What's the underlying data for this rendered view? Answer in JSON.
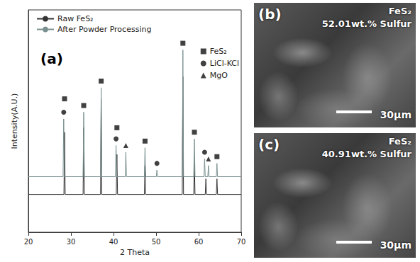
{
  "chart_data": {
    "type": "line",
    "panel_label": "(a)",
    "x_label": "2 Theta",
    "y_label": "Intensity(A.U.)",
    "xlim": [
      20,
      70
    ],
    "xticks": [
      20,
      30,
      40,
      50,
      60,
      70
    ],
    "ylim": [
      0,
      100
    ],
    "tick_labels": "x",
    "grid": false,
    "legend": "upper left",
    "series": [
      {
        "name": "Raw FeS₂",
        "type": "line",
        "color": "#333333",
        "x": [
          20,
          28.35,
          28.5,
          28.65,
          32.85,
          33.0,
          33.15,
          36.95,
          37.1,
          37.25,
          40.65,
          40.8,
          40.95,
          47.25,
          47.4,
          47.55,
          56.15,
          56.3,
          56.45,
          58.85,
          59.0,
          59.15,
          61.55,
          61.7,
          61.85,
          64.15,
          64.3,
          64.45,
          70
        ],
        "values": [
          17,
          17,
          45,
          17,
          17,
          47,
          17,
          17,
          60,
          17,
          17,
          35,
          17,
          17,
          30,
          17,
          17,
          70,
          17,
          17,
          33,
          17,
          17,
          24,
          17,
          17,
          24,
          17,
          17
        ]
      },
      {
        "name": "After Powder Processing",
        "type": "line",
        "color": "#7a9090",
        "x": [
          20,
          28.15,
          28.3,
          28.45,
          32.85,
          33.0,
          33.15,
          36.95,
          37.1,
          37.25,
          40.45,
          40.6,
          40.75,
          42.75,
          42.9,
          43.05,
          47.25,
          47.4,
          47.55,
          50.05,
          50.2,
          50.35,
          56.15,
          56.3,
          56.45,
          58.85,
          59.0,
          59.15,
          61.25,
          61.4,
          61.55,
          62.15,
          62.3,
          62.45,
          64.15,
          64.3,
          64.45,
          70
        ],
        "values": [
          25,
          25,
          51,
          25,
          25,
          54,
          25,
          25,
          65,
          25,
          25,
          39,
          25,
          25,
          36,
          25,
          25,
          38,
          25,
          25,
          28,
          25,
          25,
          82,
          25,
          25,
          42,
          25,
          25,
          33,
          25,
          25,
          30,
          25,
          25,
          31,
          25,
          25
        ]
      },
      {
        "name": "FeS₂",
        "type": "scatter",
        "marker": "square",
        "color": "#111111",
        "x": [
          28.5,
          33.0,
          37.1,
          40.8,
          47.4,
          56.3,
          59.0,
          64.3
        ],
        "values": [
          60,
          57,
          68,
          47,
          41,
          85,
          45,
          34
        ]
      },
      {
        "name": "LiCl-KCl",
        "type": "scatter",
        "marker": "circle",
        "color": "#111111",
        "x": [
          28.3,
          40.6,
          50.2,
          61.4
        ],
        "values": [
          54,
          42,
          31,
          36
        ]
      },
      {
        "name": "MgO",
        "type": "scatter",
        "marker": "triangle",
        "color": "#111111",
        "x": [
          42.9,
          62.3
        ],
        "values": [
          39,
          33
        ]
      }
    ]
  },
  "images": [
    {
      "label": "(b)",
      "title": "FeS₂",
      "subtitle": "52.01wt.% Sulfur",
      "scale_bar": "30μm"
    },
    {
      "label": "(c)",
      "title": "FeS₂",
      "subtitle": "40.91wt.% Sulfur",
      "scale_bar": "30μm"
    }
  ]
}
